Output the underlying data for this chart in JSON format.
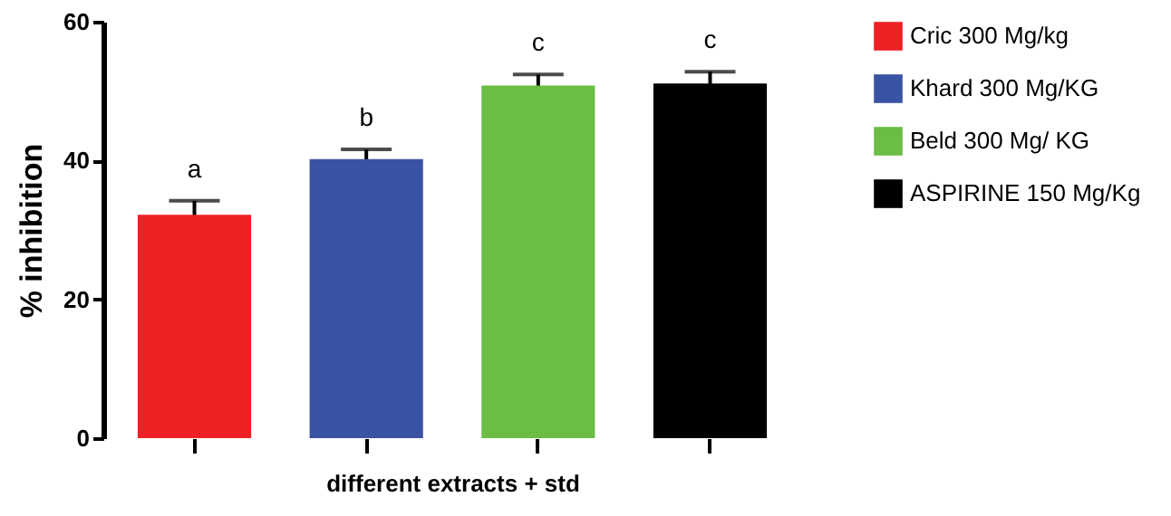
{
  "chart_data": {
    "type": "bar",
    "xlabel": "different extracts + std",
    "ylabel": "% inhibition",
    "categories": [
      null,
      null,
      null,
      null
    ],
    "stacked": true,
    "series": [
      {
        "name": "Cric 300 Mg/kg",
        "color": "#ed2024",
        "values": [
          32.2,
          null,
          null,
          null
        ],
        "errors": [
          2.0,
          null,
          null,
          null
        ]
      },
      {
        "name": " Khard 300 Mg/KG",
        "color": "#3953a4",
        "values": [
          null,
          40.2,
          null,
          null
        ],
        "errors": [
          null,
          1.4,
          null,
          null
        ]
      },
      {
        "name": "Beld  300 Mg/ KG",
        "color": "#6bbd45",
        "values": [
          null,
          null,
          50.8,
          null
        ],
        "errors": [
          null,
          null,
          1.6,
          null
        ]
      },
      {
        "name": "ASPIRINE 150 Mg/Kg",
        "color": "#000000",
        "values": [
          null,
          null,
          null,
          51.1
        ],
        "errors": [
          null,
          null,
          null,
          1.7
        ]
      }
    ],
    "annotations": [
      "a",
      "b",
      "c",
      "c"
    ],
    "ylim": [
      0,
      60
    ],
    "yticks": [
      0,
      20,
      40,
      60
    ],
    "grid": false,
    "legend": "top right",
    "tick_labels": "y"
  }
}
